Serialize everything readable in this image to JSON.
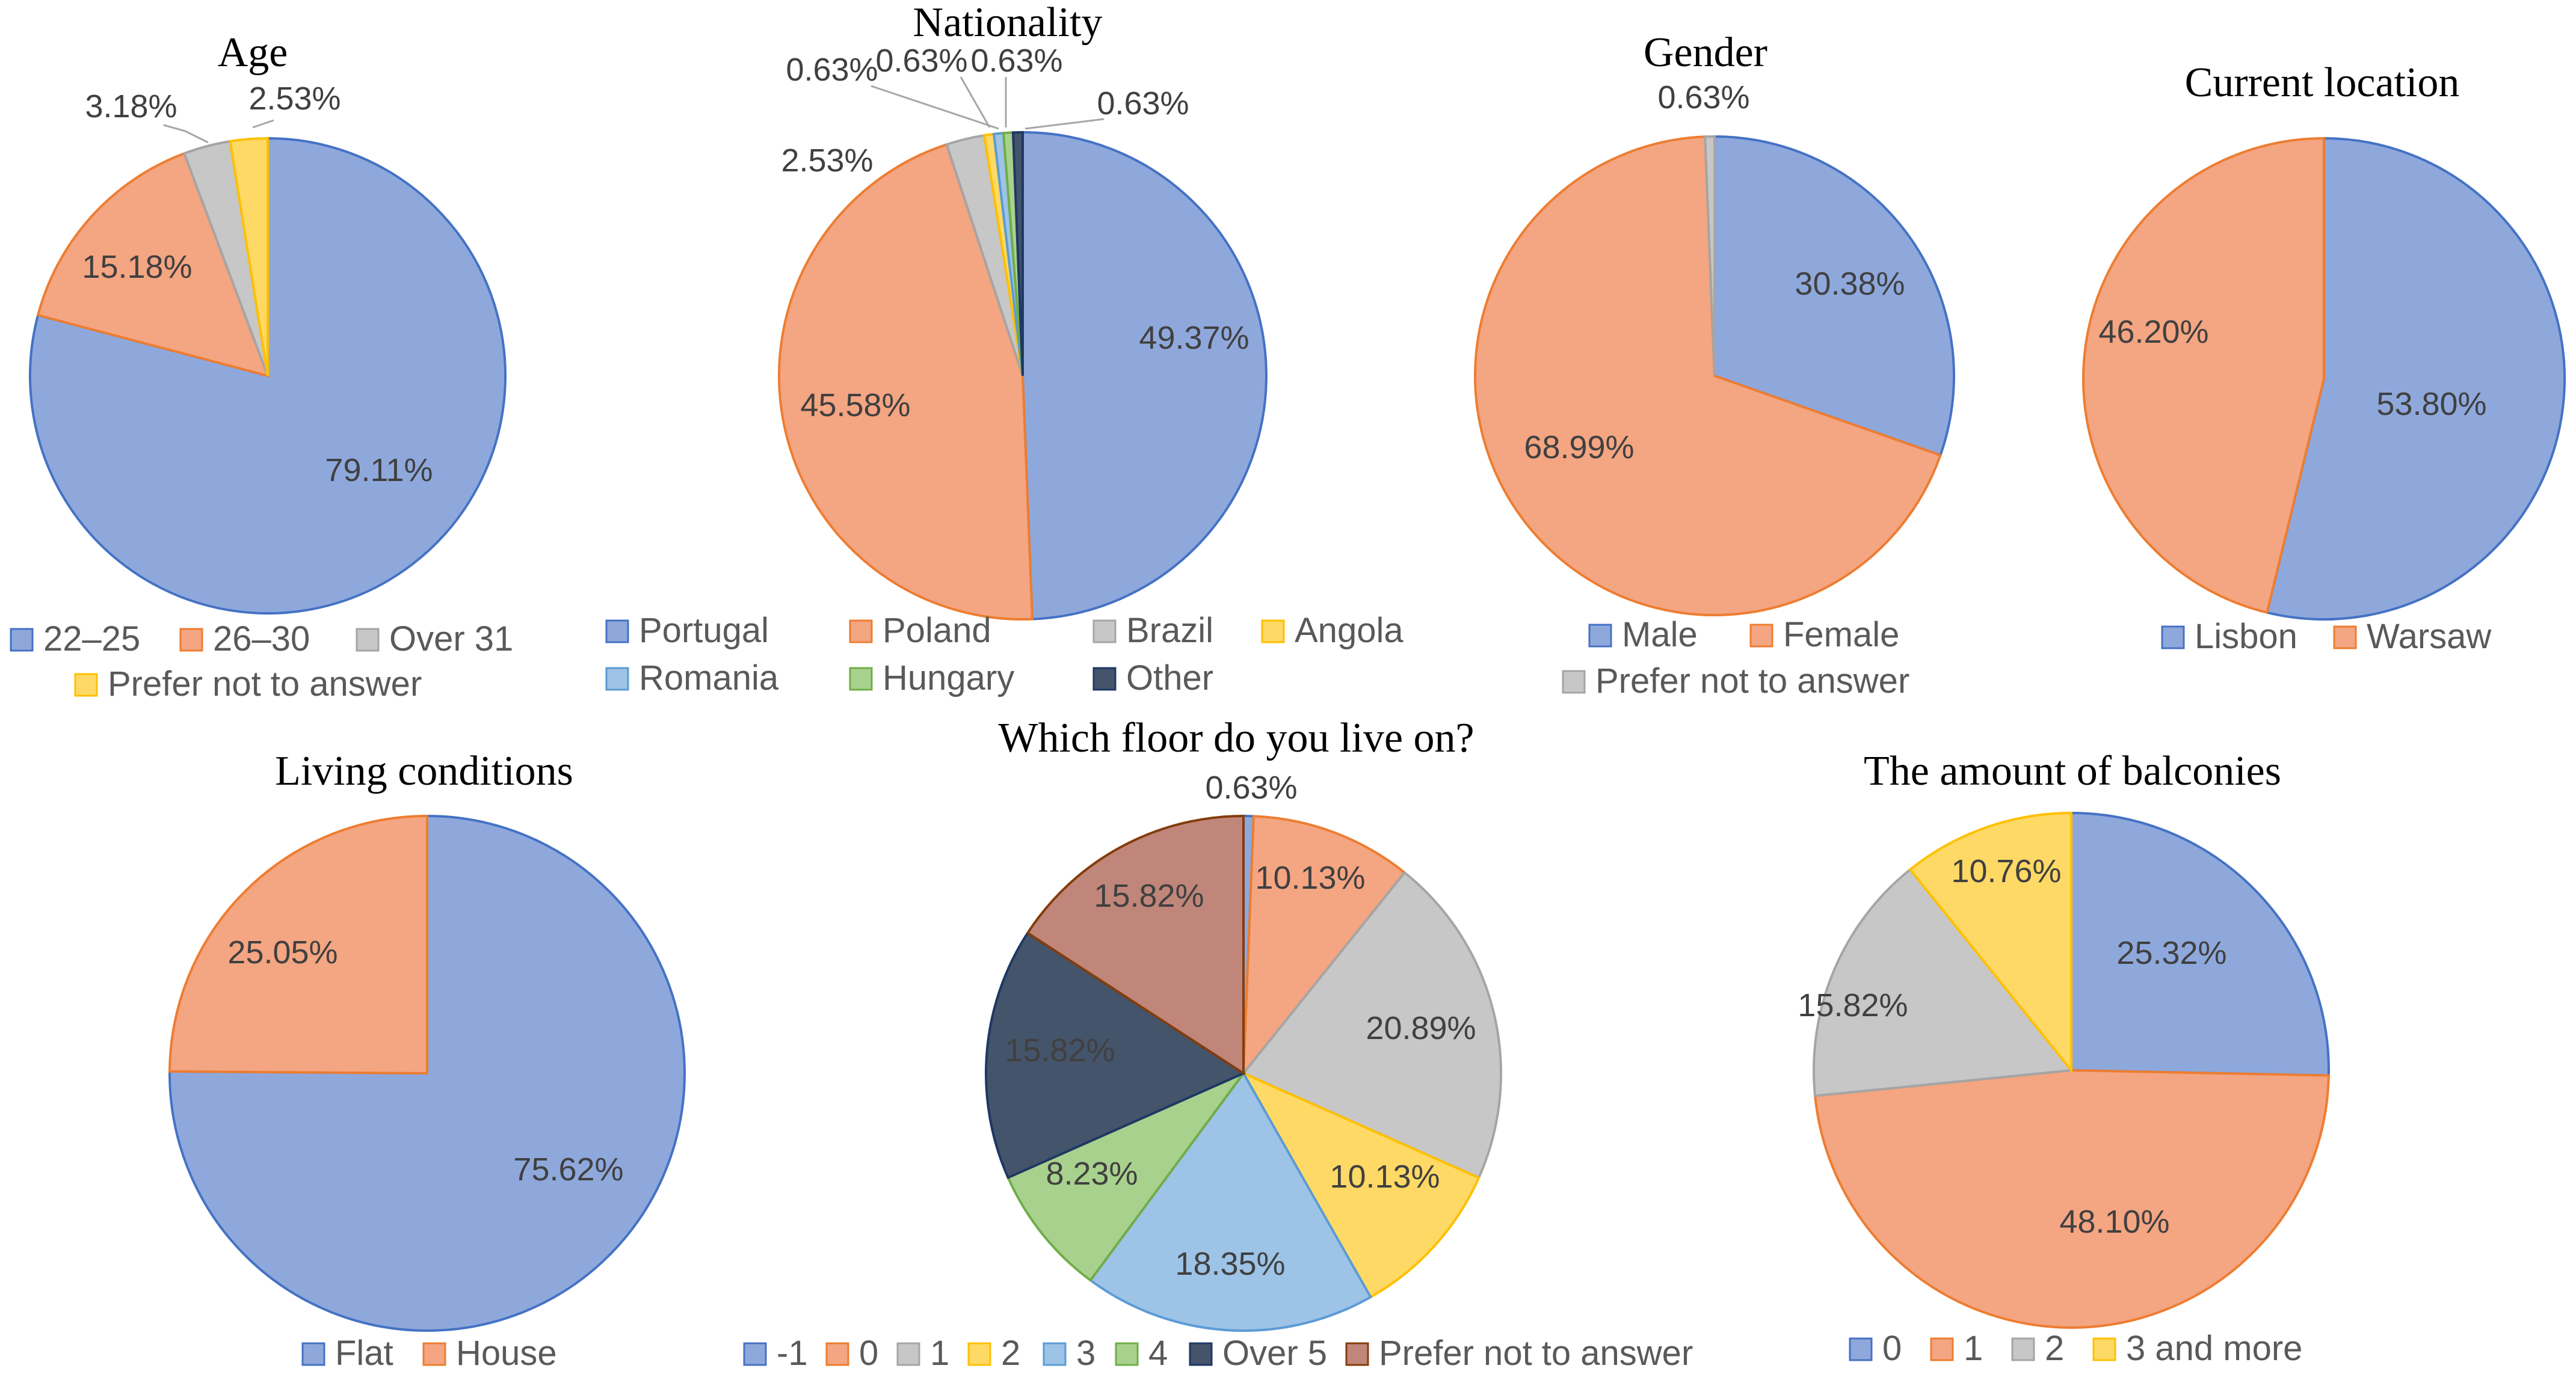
{
  "colors": {
    "blue": "#8fa8dc",
    "orange": "#f4a582",
    "gray": "#c7c7c7",
    "yellow": "#ffd966",
    "lightblue": "#9dc3e6",
    "green": "#a9d18e",
    "navy": "#44546a",
    "brown": "#c0867a"
  },
  "chart_data": [
    {
      "type": "pie",
      "title": "Age",
      "slices": [
        {
          "label": "22–25",
          "value": 79.11,
          "value_label": "79.11%",
          "color": "blue"
        },
        {
          "label": "26–30",
          "value": 15.18,
          "value_label": "15.18%",
          "color": "orange"
        },
        {
          "label": "Over 31",
          "value": 3.18,
          "value_label": "3.18%",
          "color": "gray"
        },
        {
          "label": "Prefer not to answer",
          "value": 2.53,
          "value_label": "2.53%",
          "color": "yellow"
        }
      ]
    },
    {
      "type": "pie",
      "title": "Nationality",
      "slices": [
        {
          "label": "Portugal",
          "value": 49.37,
          "value_label": "49.37%",
          "color": "blue"
        },
        {
          "label": "Poland",
          "value": 45.58,
          "value_label": "45.58%",
          "color": "orange"
        },
        {
          "label": "Brazil",
          "value": 2.53,
          "value_label": "2.53%",
          "color": "gray"
        },
        {
          "label": "Angola",
          "value": 0.63,
          "value_label": "0.63%",
          "color": "yellow"
        },
        {
          "label": "Romania",
          "value": 0.63,
          "value_label": "0.63%",
          "color": "lightblue"
        },
        {
          "label": "Hungary",
          "value": 0.63,
          "value_label": "0.63%",
          "color": "green"
        },
        {
          "label": "Other",
          "value": 0.63,
          "value_label": "0.63%",
          "color": "navy"
        }
      ]
    },
    {
      "type": "pie",
      "title": "Gender",
      "slices": [
        {
          "label": "Male",
          "value": 30.38,
          "value_label": "30.38%",
          "color": "blue"
        },
        {
          "label": "Female",
          "value": 68.99,
          "value_label": "68.99%",
          "color": "orange"
        },
        {
          "label": "Prefer not to answer",
          "value": 0.63,
          "value_label": "0.63%",
          "color": "gray"
        }
      ]
    },
    {
      "type": "pie",
      "title": "Current location",
      "slices": [
        {
          "label": "Lisbon",
          "value": 53.8,
          "value_label": "53.80%",
          "color": "blue"
        },
        {
          "label": "Warsaw",
          "value": 46.2,
          "value_label": "46.20%",
          "color": "orange"
        }
      ]
    },
    {
      "type": "pie",
      "title": "Living conditions",
      "slices": [
        {
          "label": "Flat",
          "value": 75.62,
          "value_label": "75.62%",
          "color": "blue"
        },
        {
          "label": "House",
          "value": 25.05,
          "value_label": "25.05%",
          "color": "orange"
        }
      ]
    },
    {
      "type": "pie",
      "title": "Which floor do you live on?",
      "slices": [
        {
          "label": "-1",
          "value": 0.63,
          "value_label": "0.63%",
          "color": "blue"
        },
        {
          "label": "0",
          "value": 10.13,
          "value_label": "10.13%",
          "color": "orange"
        },
        {
          "label": "1",
          "value": 20.89,
          "value_label": "20.89%",
          "color": "gray"
        },
        {
          "label": "2",
          "value": 10.13,
          "value_label": "10.13%",
          "color": "yellow"
        },
        {
          "label": "3",
          "value": 18.35,
          "value_label": "18.35%",
          "color": "lightblue"
        },
        {
          "label": "4",
          "value": 8.23,
          "value_label": "8.23%",
          "color": "green"
        },
        {
          "label": "Over 5",
          "value": 15.82,
          "value_label": "15.82%",
          "color": "navy"
        },
        {
          "label": "Prefer not to answer",
          "value": 15.82,
          "value_label": "15.82%",
          "color": "brown"
        }
      ]
    },
    {
      "type": "pie",
      "title": "The amount of balconies",
      "slices": [
        {
          "label": "0",
          "value": 25.32,
          "value_label": "25.32%",
          "color": "blue"
        },
        {
          "label": "1",
          "value": 48.1,
          "value_label": "48.10%",
          "color": "orange"
        },
        {
          "label": "2",
          "value": 15.82,
          "value_label": "15.82%",
          "color": "gray"
        },
        {
          "label": "3 and more",
          "value": 10.76,
          "value_label": "10.76%",
          "color": "yellow"
        }
      ]
    }
  ]
}
